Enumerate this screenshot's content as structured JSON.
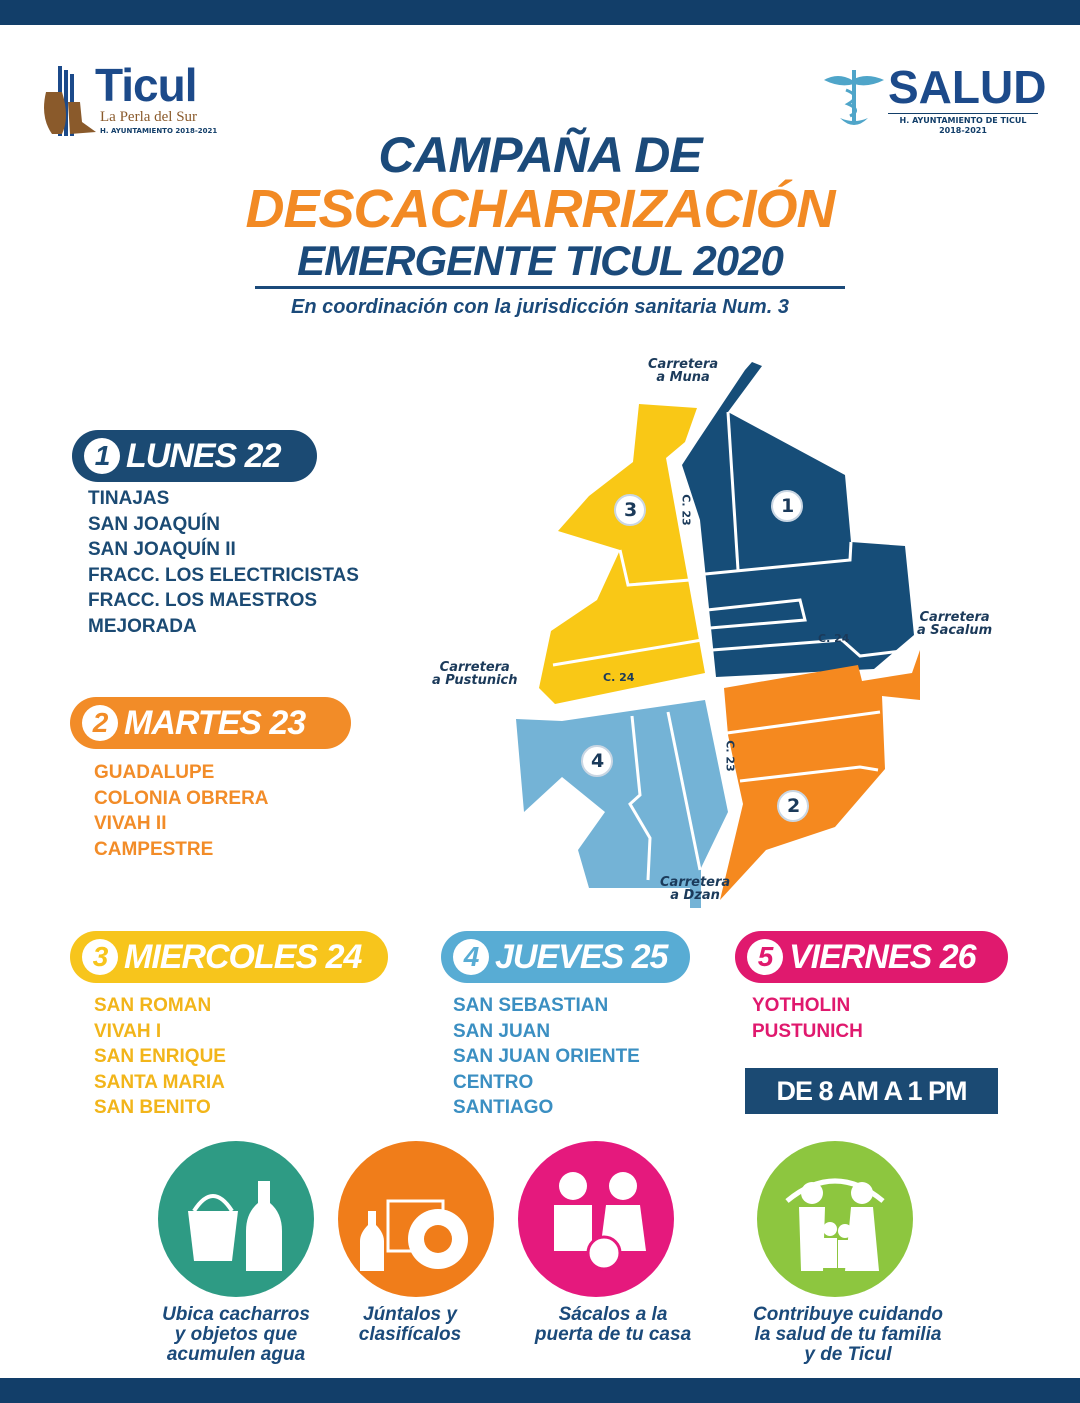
{
  "logos": {
    "ticul": {
      "name": "Ticul",
      "tagline": "La Perla del Sur",
      "sub": "H. AYUNTAMIENTO 2018-2021"
    },
    "salud": {
      "name": "SALUD",
      "sub1": "H. AYUNTAMIENTO DE TICUL",
      "sub2": "2018-2021"
    }
  },
  "title": {
    "line1": "CAMPAÑA DE",
    "line2": "DESCACHARRIZACIÓN",
    "line3": "EMERGENTE TICUL 2020",
    "subtitle": "En coordinación con la jurisdicción sanitaria Num. 3"
  },
  "map": {
    "roads": {
      "muna": [
        "Carretera",
        "a Muna"
      ],
      "sacalum": [
        "Carretera",
        "a Sacalum"
      ],
      "pustunich": [
        "Carretera",
        "a Pustunich"
      ],
      "dzan": [
        "Carretera",
        "a Dzan"
      ]
    },
    "streets": {
      "c23": "C. 23",
      "c24": "C. 24"
    },
    "zones": [
      "1",
      "2",
      "3",
      "4"
    ],
    "colors": {
      "1": "#164d78",
      "2": "#f5891f",
      "3": "#f9c816",
      "4": "#74b3d6"
    }
  },
  "days": [
    {
      "num": "1",
      "label": "LUNES 22",
      "color": "#1b4a73",
      "text_color": "#1b4a73",
      "items": [
        "TINAJAS",
        "SAN JOAQUÍN",
        "SAN JOAQUÍN II",
        "FRACC. LOS ELECTRICISTAS",
        "FRACC. LOS MAESTROS",
        "MEJORADA"
      ]
    },
    {
      "num": "2",
      "label": "MARTES 23",
      "color": "#f28c28",
      "text_color": "#f28c28",
      "items": [
        "GUADALUPE",
        "COLONIA OBRERA",
        "VIVAH II",
        "CAMPESTRE"
      ]
    },
    {
      "num": "3",
      "label": "MIERCOLES 24",
      "color": "#f7c51c",
      "text_color": "#f2b51a",
      "items": [
        "SAN ROMAN",
        "VIVAH I",
        "SAN ENRIQUE",
        "SANTA MARIA",
        "SAN BENITO"
      ]
    },
    {
      "num": "4",
      "label": "JUEVES 25",
      "color": "#58acd4",
      "text_color": "#3b8fc2",
      "items": [
        "SAN SEBASTIAN",
        "SAN JUAN",
        "SAN JUAN ORIENTE",
        "CENTRO",
        "SANTIAGO"
      ]
    },
    {
      "num": "5",
      "label": "VIERNES 26",
      "color": "#e0196e",
      "text_color": "#e0196e",
      "items": [
        "YOTHOLIN",
        "PUSTUNICH"
      ]
    }
  ],
  "schedule": "DE 8 AM A 1 PM",
  "steps": [
    {
      "icon": "bucket-bottle-icon",
      "color": "#2e9b84",
      "caption": [
        "Ubica cacharros",
        "y objetos que",
        "acumulen agua"
      ]
    },
    {
      "icon": "tire-bottle-icon",
      "color": "#f07d1a",
      "caption": [
        "Júntalos y",
        "clasifícalos"
      ]
    },
    {
      "icon": "people-carrying-icon",
      "color": "#e5197d",
      "caption": [
        "Sácalos a la",
        "puerta de tu casa"
      ]
    },
    {
      "icon": "family-icon",
      "color": "#8dc63f",
      "caption": [
        "Contribuye cuidando",
        "la salud de tu familia",
        "y de Ticul"
      ]
    }
  ]
}
